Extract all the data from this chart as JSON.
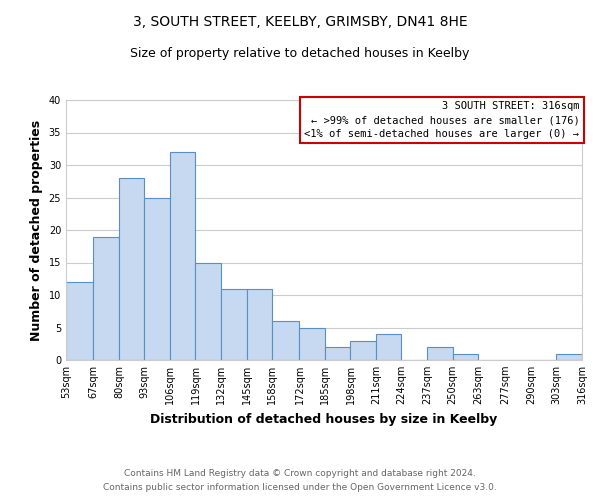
{
  "title": "3, SOUTH STREET, KEELBY, GRIMSBY, DN41 8HE",
  "subtitle": "Size of property relative to detached houses in Keelby",
  "xlabel": "Distribution of detached houses by size in Keelby",
  "ylabel": "Number of detached properties",
  "bar_edges": [
    53,
    67,
    80,
    93,
    106,
    119,
    132,
    145,
    158,
    172,
    185,
    198,
    211,
    224,
    237,
    250,
    263,
    277,
    290,
    303,
    316
  ],
  "bar_heights": [
    12,
    19,
    28,
    25,
    32,
    15,
    11,
    11,
    6,
    5,
    2,
    3,
    4,
    0,
    2,
    1,
    0,
    0,
    0,
    1
  ],
  "bar_color": "#c6d9f0",
  "bar_edge_color": "#5a8fc3",
  "ylim": [
    0,
    40
  ],
  "yticks": [
    0,
    5,
    10,
    15,
    20,
    25,
    30,
    35,
    40
  ],
  "xtick_labels": [
    "53sqm",
    "67sqm",
    "80sqm",
    "93sqm",
    "106sqm",
    "119sqm",
    "132sqm",
    "145sqm",
    "158sqm",
    "172sqm",
    "185sqm",
    "198sqm",
    "211sqm",
    "224sqm",
    "237sqm",
    "250sqm",
    "263sqm",
    "277sqm",
    "290sqm",
    "303sqm",
    "316sqm"
  ],
  "legend_title": "3 SOUTH STREET: 316sqm",
  "legend_line1": "← >99% of detached houses are smaller (176)",
  "legend_line2": "<1% of semi-detached houses are larger (0) →",
  "legend_box_color": "#ffffff",
  "legend_box_edge_color": "#cc0000",
  "footer_line1": "Contains HM Land Registry data © Crown copyright and database right 2024.",
  "footer_line2": "Contains public sector information licensed under the Open Government Licence v3.0.",
  "grid_color": "#cccccc",
  "background_color": "#ffffff",
  "title_fontsize": 10,
  "subtitle_fontsize": 9,
  "axis_label_fontsize": 9,
  "tick_fontsize": 7,
  "legend_fontsize": 7.5,
  "footer_fontsize": 6.5
}
